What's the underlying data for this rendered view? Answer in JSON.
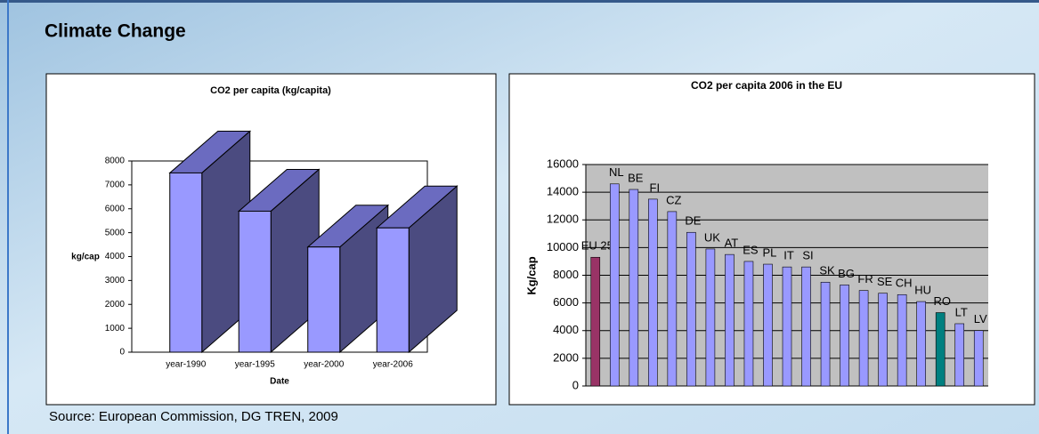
{
  "header": {
    "title": "Climate Change"
  },
  "source": "Source: European Commission, DG TREN, 2009",
  "chart_data": [
    {
      "type": "bar3d",
      "title": "CO2 per capita (kg/capita)",
      "x_label": "Date",
      "y_label": "kg/cap",
      "categories": [
        "year-1990",
        "year-1995",
        "year-2000",
        "year-2006"
      ],
      "values": [
        7500,
        5900,
        4400,
        5200
      ],
      "color": "#9999ff",
      "ylim": [
        0,
        8000
      ],
      "yticks": [
        0,
        1000,
        2000,
        3000,
        4000,
        5000,
        6000,
        7000,
        8000
      ],
      "grid": false
    },
    {
      "type": "bar",
      "title": "CO2 per capita 2006 in the EU",
      "y_label": "Kg/cap",
      "categories": [
        "EU 25",
        "NL",
        "BE",
        "FI",
        "CZ",
        "DE",
        "UK",
        "AT",
        "ES",
        "PL",
        "IT",
        "SI",
        "SK",
        "BG",
        "FR",
        "SE",
        "CH",
        "HU",
        "RO",
        "LT",
        "LV"
      ],
      "values": [
        9300,
        14600,
        14200,
        13500,
        12600,
        11100,
        9900,
        9500,
        9000,
        8800,
        8600,
        8600,
        7500,
        7300,
        6900,
        6700,
        6600,
        6100,
        5300,
        4500,
        4000
      ],
      "colors": [
        "#993366",
        "#9999ff",
        "#9999ff",
        "#9999ff",
        "#9999ff",
        "#9999ff",
        "#9999ff",
        "#9999ff",
        "#9999ff",
        "#9999ff",
        "#9999ff",
        "#9999ff",
        "#9999ff",
        "#9999ff",
        "#9999ff",
        "#9999ff",
        "#9999ff",
        "#9999ff",
        "#008080",
        "#9999ff",
        "#9999ff"
      ],
      "ylim": [
        0,
        16000
      ],
      "yticks": [
        0,
        2000,
        4000,
        6000,
        8000,
        10000,
        12000,
        14000,
        16000
      ],
      "grid": true
    }
  ]
}
